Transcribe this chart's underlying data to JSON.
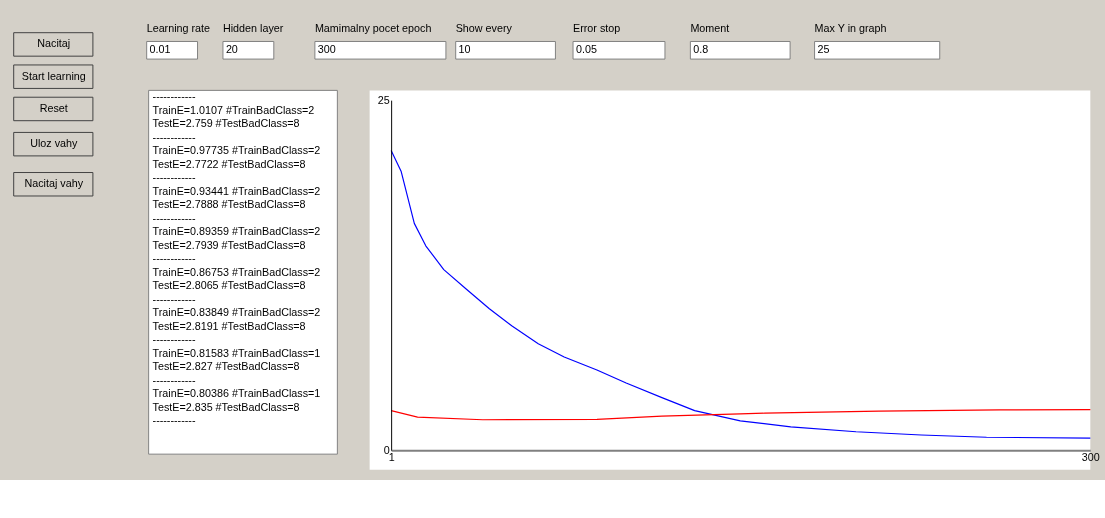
{
  "chart_data": {
    "type": "line",
    "x": [
      1,
      5.3,
      10.9,
      15.8,
      23.5,
      33.2,
      43,
      52.7,
      63.9,
      75,
      89,
      101.5,
      116.8,
      130.8,
      150.3,
      171.9,
      199.8,
      227.7,
      255.6,
      300
    ],
    "series": [
      {
        "color": "#0000ff",
        "values": [
          21.4,
          19.9,
          16.2,
          14.6,
          12.9,
          11.5,
          10.1,
          8.87,
          7.6,
          6.66,
          5.73,
          4.8,
          3.76,
          2.83,
          2.1,
          1.67,
          1.32,
          1.09,
          0.93,
          0.86
        ]
      },
      {
        "color": "#ff0000",
        "x": [
          1,
          12.3,
          40.2,
          89,
          116.8,
          150.3,
          160.8,
          209.6,
          261.1,
          300
        ],
        "values": [
          2.83,
          2.37,
          2.18,
          2.2,
          2.44,
          2.6,
          2.65,
          2.79,
          2.88,
          2.9
        ]
      }
    ],
    "xlim": [
      1,
      300
    ],
    "xticks": [
      1,
      300
    ],
    "ylim": [
      0,
      25
    ],
    "yticks": [
      0,
      25
    ],
    "grid": false,
    "legend": false,
    "marker": "none",
    "line_style": "solid",
    "annotations": [
      "Nacitaj",
      "Start learning",
      "Reset",
      "Uloz vahy",
      "Nacitaj vahy",
      "Learning rate",
      "0.01",
      "Hidden layer",
      "20",
      "Mamimalny pocet epoch",
      "300",
      "Show every",
      "10",
      "Error stop",
      "0.05",
      "Moment",
      "0.8",
      "Max Y in graph",
      "25",
      "------------",
      "TrainE=1.0107 #TrainBadClass=2",
      "TestE=2.759 #TestBadClass=8",
      "------------",
      "TrainE=0.97735 #TrainBadClass=2",
      "TestE=2.7722 #TestBadClass=8",
      "------------",
      "TrainE=0.93441 #TrainBadClass=2",
      "TestE=2.7888 #TestBadClass=8",
      "------------",
      "TrainE=0.89359 #TrainBadClass=2",
      "TestE=2.7939 #TestBadClass=8",
      "------------",
      "TrainE=0.86753 #TrainBadClass=2",
      "TestE=2.8065 #TestBadClass=8",
      "------------",
      "TrainE=0.83849 #TrainBadClass=2",
      "TestE=2.8191 #TestBadClass=8",
      "------------",
      "TrainE=0.81583 #TrainBadClass=1",
      "TestE=2.827 #TestBadClass=8",
      "------------",
      "TrainE=0.80386 #TrainBadClass=1",
      "TestE=2.835 #TestBadClass=8",
      "------------"
    ]
  }
}
